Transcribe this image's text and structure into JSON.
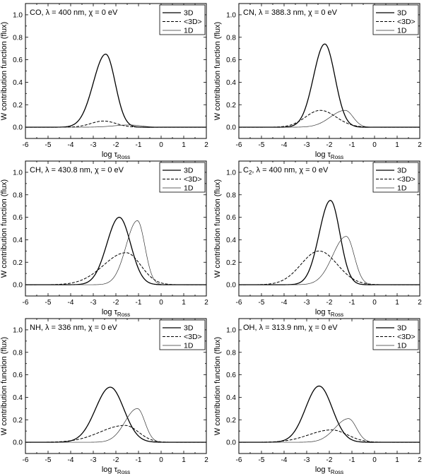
{
  "chart_data": [
    {
      "type": "line",
      "title_parts": {
        "species": "CO",
        "sub": "",
        "rest": ", λ = 400 nm, χ = 0 eV"
      },
      "xlabel": "log τ",
      "xlabel_sub": "Ross",
      "ylabel": "W contribution function (flux)",
      "xlim": [
        -6,
        2
      ],
      "ylim": [
        -0.1,
        1.1
      ],
      "x_ticks": [
        "-6",
        "-5",
        "-4",
        "-3",
        "-2",
        "-1",
        "0",
        "1",
        "2"
      ],
      "y_ticks": [
        "0.0",
        "0.2",
        "0.4",
        "0.6",
        "0.8",
        "1.0"
      ],
      "legend_position": "top-right",
      "series": [
        {
          "name": "3D",
          "style": "solid-thick",
          "peak_x": -2.45,
          "peak_y": 0.65,
          "sigma_left": 0.55,
          "sigma_right": 0.42
        },
        {
          "name": "<3D>",
          "style": "dashed",
          "peak_x": -2.55,
          "peak_y": 0.055,
          "sigma_left": 0.55,
          "sigma_right": 0.55
        },
        {
          "name": "1D",
          "style": "solid-thin",
          "peak_x": -1.4,
          "peak_y": 0.02,
          "sigma_left": 0.7,
          "sigma_right": 0.5
        }
      ]
    },
    {
      "type": "line",
      "title_parts": {
        "species": "CN",
        "sub": "",
        "rest": ", λ = 388.3 nm, χ = 0 eV"
      },
      "xlabel": "log τ",
      "xlabel_sub": "Ross",
      "ylabel": "W contribution function (flux)",
      "xlim": [
        -6,
        2
      ],
      "ylim": [
        -0.1,
        1.1
      ],
      "x_ticks": [
        "-6",
        "-5",
        "-4",
        "-3",
        "-2",
        "-1",
        "0",
        "1",
        "2"
      ],
      "y_ticks": [
        "0.0",
        "0.2",
        "0.4",
        "0.6",
        "0.8",
        "1.0"
      ],
      "legend_position": "top-right",
      "series": [
        {
          "name": "3D",
          "style": "solid-thick",
          "peak_x": -2.2,
          "peak_y": 0.74,
          "sigma_left": 0.5,
          "sigma_right": 0.45
        },
        {
          "name": "<3D>",
          "style": "dashed",
          "peak_x": -2.4,
          "peak_y": 0.15,
          "sigma_left": 0.65,
          "sigma_right": 0.7
        },
        {
          "name": "1D",
          "style": "solid-thin",
          "peak_x": -1.3,
          "peak_y": 0.15,
          "sigma_left": 0.65,
          "sigma_right": 0.35
        }
      ]
    },
    {
      "type": "line",
      "title_parts": {
        "species": "CH",
        "sub": "",
        "rest": ", λ = 430.8 nm, χ = 0 eV"
      },
      "xlabel": "log τ",
      "xlabel_sub": "Ross",
      "ylabel": "W contribution function (flux)",
      "xlim": [
        -6,
        2
      ],
      "ylim": [
        -0.1,
        1.1
      ],
      "x_ticks": [
        "-6",
        "-5",
        "-4",
        "-3",
        "-2",
        "-1",
        "0",
        "1",
        "2"
      ],
      "y_ticks": [
        "0.0",
        "0.2",
        "0.4",
        "0.6",
        "0.8",
        "1.0"
      ],
      "legend_position": "top-right",
      "series": [
        {
          "name": "3D",
          "style": "solid-thick",
          "peak_x": -1.85,
          "peak_y": 0.6,
          "sigma_left": 0.55,
          "sigma_right": 0.5
        },
        {
          "name": "<3D>",
          "style": "dashed",
          "peak_x": -1.55,
          "peak_y": 0.285,
          "sigma_left": 1.0,
          "sigma_right": 0.65
        },
        {
          "name": "1D",
          "style": "solid-thin",
          "peak_x": -1.05,
          "peak_y": 0.57,
          "sigma_left": 0.5,
          "sigma_right": 0.33
        }
      ]
    },
    {
      "type": "line",
      "title_parts": {
        "species": "C",
        "sub": "2",
        "rest": ", λ = 400 nm, χ = 0 eV"
      },
      "xlabel": "log τ",
      "xlabel_sub": "Ross",
      "ylabel": "W contribution function (flux)",
      "xlim": [
        -6,
        2
      ],
      "ylim": [
        -0.1,
        1.1
      ],
      "x_ticks": [
        "-6",
        "-5",
        "-4",
        "-3",
        "-2",
        "-1",
        "0",
        "1",
        "2"
      ],
      "y_ticks": [
        "0.0",
        "0.2",
        "0.4",
        "0.6",
        "0.8",
        "1.0"
      ],
      "legend_position": "top-right",
      "series": [
        {
          "name": "3D",
          "style": "solid-thick",
          "peak_x": -1.95,
          "peak_y": 0.75,
          "sigma_left": 0.5,
          "sigma_right": 0.42
        },
        {
          "name": "<3D>",
          "style": "dashed",
          "peak_x": -2.45,
          "peak_y": 0.3,
          "sigma_left": 0.8,
          "sigma_right": 0.8
        },
        {
          "name": "1D",
          "style": "solid-thin",
          "peak_x": -1.25,
          "peak_y": 0.43,
          "sigma_left": 0.6,
          "sigma_right": 0.35
        }
      ]
    },
    {
      "type": "line",
      "title_parts": {
        "species": "NH",
        "sub": "",
        "rest": ", λ = 336 nm, χ = 0 eV"
      },
      "xlabel": "log τ",
      "xlabel_sub": "Ross",
      "ylabel": "W contribution function (flux)",
      "xlim": [
        -6,
        2
      ],
      "ylim": [
        -0.1,
        1.1
      ],
      "x_ticks": [
        "-6",
        "-5",
        "-4",
        "-3",
        "-2",
        "-1",
        "0",
        "1",
        "2"
      ],
      "y_ticks": [
        "0.0",
        "0.2",
        "0.4",
        "0.6",
        "0.8",
        "1.0"
      ],
      "legend_position": "top-right",
      "series": [
        {
          "name": "3D",
          "style": "solid-thick",
          "peak_x": -2.25,
          "peak_y": 0.49,
          "sigma_left": 0.65,
          "sigma_right": 0.6
        },
        {
          "name": "<3D>",
          "style": "dashed",
          "peak_x": -1.6,
          "peak_y": 0.15,
          "sigma_left": 1.1,
          "sigma_right": 0.6
        },
        {
          "name": "1D",
          "style": "solid-thin",
          "peak_x": -1.05,
          "peak_y": 0.3,
          "sigma_left": 0.55,
          "sigma_right": 0.33
        }
      ]
    },
    {
      "type": "line",
      "title_parts": {
        "species": "OH",
        "sub": "",
        "rest": ", λ = 313.9 nm, χ = 0 eV"
      },
      "xlabel": "log τ",
      "xlabel_sub": "Ross",
      "ylabel": "W contribution function (flux)",
      "xlim": [
        -6,
        2
      ],
      "ylim": [
        -0.1,
        1.1
      ],
      "x_ticks": [
        "-6",
        "-5",
        "-4",
        "-3",
        "-2",
        "-1",
        "0",
        "1",
        "2"
      ],
      "y_ticks": [
        "0.0",
        "0.2",
        "0.4",
        "0.6",
        "0.8",
        "1.0"
      ],
      "legend_position": "top-right",
      "series": [
        {
          "name": "3D",
          "style": "solid-thick",
          "peak_x": -2.45,
          "peak_y": 0.5,
          "sigma_left": 0.6,
          "sigma_right": 0.58
        },
        {
          "name": "<3D>",
          "style": "dashed",
          "peak_x": -1.9,
          "peak_y": 0.11,
          "sigma_left": 1.0,
          "sigma_right": 0.7
        },
        {
          "name": "1D",
          "style": "solid-thin",
          "peak_x": -1.15,
          "peak_y": 0.21,
          "sigma_left": 0.6,
          "sigma_right": 0.35
        }
      ]
    }
  ]
}
